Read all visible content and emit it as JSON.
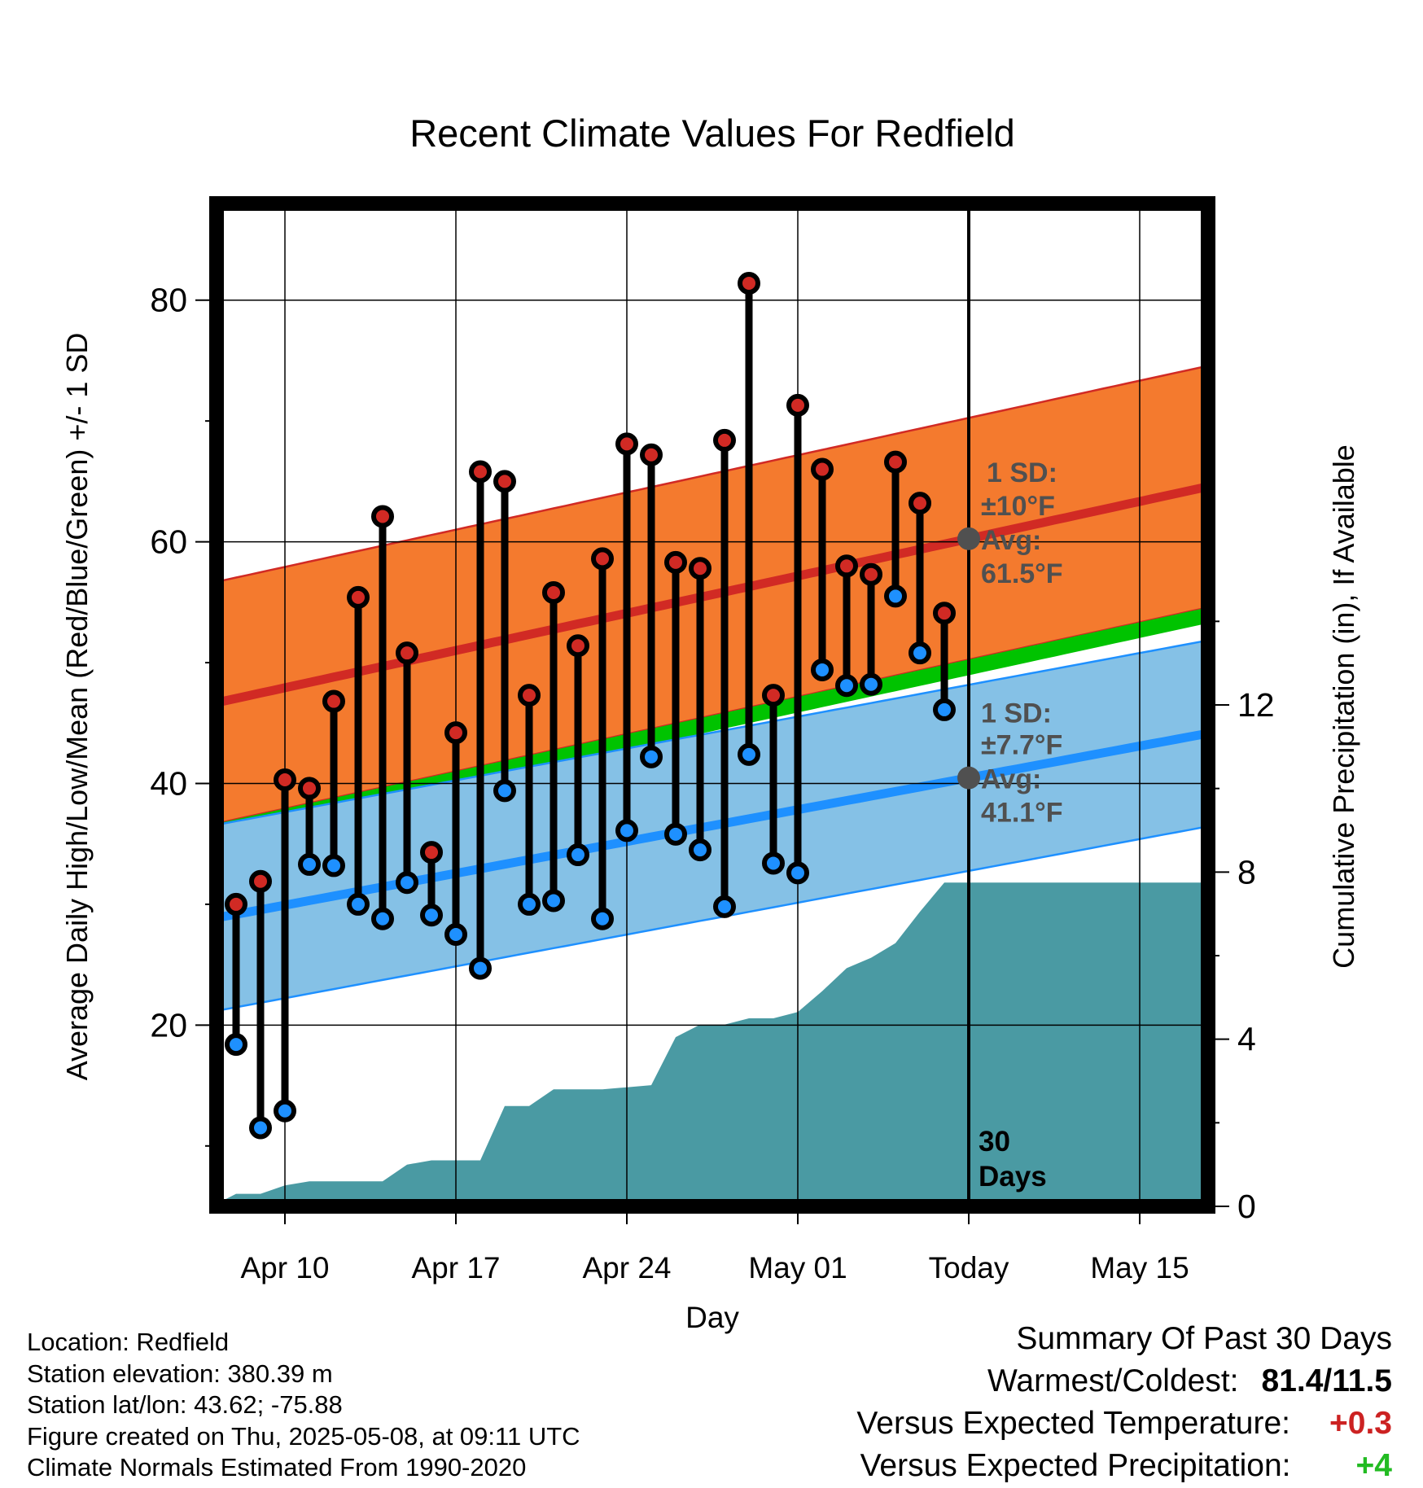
{
  "colors": {
    "high_band": "#f47a2e",
    "high_avg": "#d12a24",
    "low_band": "#85c1e6",
    "low_avg": "#1e90ff",
    "green_band": "#00c300",
    "precip": "#4a9aa3",
    "annotation": "#505050",
    "positive_temp": "#cc2222",
    "positive_precip": "#22bb22"
  },
  "chart_data": {
    "type": "line",
    "title": "Recent Climate Values For Redfield",
    "xlabel": "Day",
    "ylabel": "Average Daily High/Low/Mean (Red/Blue/Green) +/- 1 SD",
    "y2label": "Cumulative Precipitation (in), If Available",
    "x_ticks": [
      "Apr 10",
      "Apr 17",
      "Apr 24",
      "May 01",
      "Today",
      "May 15"
    ],
    "y_ticks": [
      "20",
      "40",
      "60",
      "80"
    ],
    "y2_ticks": [
      "0",
      "4",
      "8",
      "12"
    ],
    "ylim": [
      5,
      88
    ],
    "y2lim": [
      0,
      24
    ],
    "grid": true,
    "days": [
      "Apr 08",
      "Apr 09",
      "Apr 10",
      "Apr 11",
      "Apr 12",
      "Apr 13",
      "Apr 14",
      "Apr 15",
      "Apr 16",
      "Apr 17",
      "Apr 18",
      "Apr 19",
      "Apr 20",
      "Apr 21",
      "Apr 22",
      "Apr 23",
      "Apr 24",
      "Apr 25",
      "Apr 26",
      "Apr 27",
      "Apr 28",
      "Apr 29",
      "Apr 30",
      "May 01",
      "May 02",
      "May 03",
      "May 04",
      "May 05",
      "May 06",
      "May 07"
    ],
    "series": [
      {
        "name": "High",
        "values": [
          30.0,
          31.9,
          40.3,
          39.6,
          46.8,
          55.4,
          62.1,
          50.8,
          34.3,
          44.2,
          65.8,
          65.0,
          47.3,
          55.8,
          51.4,
          58.6,
          68.1,
          67.2,
          58.3,
          57.8,
          68.4,
          81.4,
          47.3,
          71.3,
          66.0,
          58.0,
          57.3,
          66.6,
          63.2,
          54.1
        ]
      },
      {
        "name": "Low",
        "values": [
          18.4,
          11.5,
          12.9,
          33.3,
          33.2,
          30.0,
          28.8,
          31.8,
          29.1,
          27.5,
          24.7,
          39.4,
          30.0,
          30.3,
          34.1,
          28.8,
          36.1,
          42.2,
          35.8,
          34.5,
          29.8,
          42.4,
          33.4,
          32.6,
          49.4,
          48.1,
          48.2,
          55.5,
          50.8,
          46.1
        ]
      }
    ],
    "normals": {
      "dates": [
        "Apr 07",
        "May 19"
      ],
      "high_avg": [
        46.6,
        65.1
      ],
      "high_sd": "±10°F",
      "high_avg_label": "61.5°F",
      "low_avg": [
        28.8,
        44.6
      ],
      "low_sd": "±7.7°F",
      "low_avg_label": "41.1°F"
    },
    "precip_cumulative": {
      "dates": [
        "Apr 07",
        "Apr 08",
        "Apr 09",
        "Apr 10",
        "Apr 11",
        "Apr 12",
        "Apr 13",
        "Apr 14",
        "Apr 15",
        "Apr 16",
        "Apr 17",
        "Apr 18",
        "Apr 19",
        "Apr 20",
        "Apr 21",
        "Apr 22",
        "Apr 23",
        "Apr 24",
        "Apr 25",
        "Apr 26",
        "Apr 27",
        "Apr 28",
        "Apr 29",
        "Apr 30",
        "May 01",
        "May 02",
        "May 03",
        "May 04",
        "May 05",
        "May 06",
        "May 07",
        "May 19"
      ],
      "values": [
        0.0,
        0.3,
        0.3,
        0.5,
        0.6,
        0.6,
        0.6,
        0.6,
        1.0,
        1.1,
        1.1,
        1.1,
        2.4,
        2.4,
        2.8,
        2.8,
        2.8,
        2.85,
        2.9,
        4.05,
        4.35,
        4.35,
        4.5,
        4.5,
        4.65,
        5.15,
        5.7,
        5.95,
        6.3,
        7.05,
        7.75,
        7.75
      ]
    },
    "annotations": {
      "high_sd_label": "1 SD:",
      "low_sd_label": "1 SD:",
      "avg_label": "Avg:",
      "days_line1": "30",
      "days_line2": "Days"
    }
  },
  "meta": {
    "location": "Location: Redfield",
    "elevation": "Station elevation: 380.39 m",
    "latlon": "Station lat/lon: 43.62; -75.88",
    "created": "Figure created on Thu, 2025-05-08, at 09:11 UTC",
    "normals": "Climate Normals Estimated From 1990-2020"
  },
  "summary": {
    "title": "Summary Of Past 30 Days",
    "warm_cold_label": "Warmest/Coldest:",
    "warm_cold_value": "81.4/11.5",
    "temp_label": "Versus Expected Temperature:",
    "temp_value": "+0.3",
    "precip_label": "Versus Expected Precipitation:",
    "precip_value": "+4"
  }
}
